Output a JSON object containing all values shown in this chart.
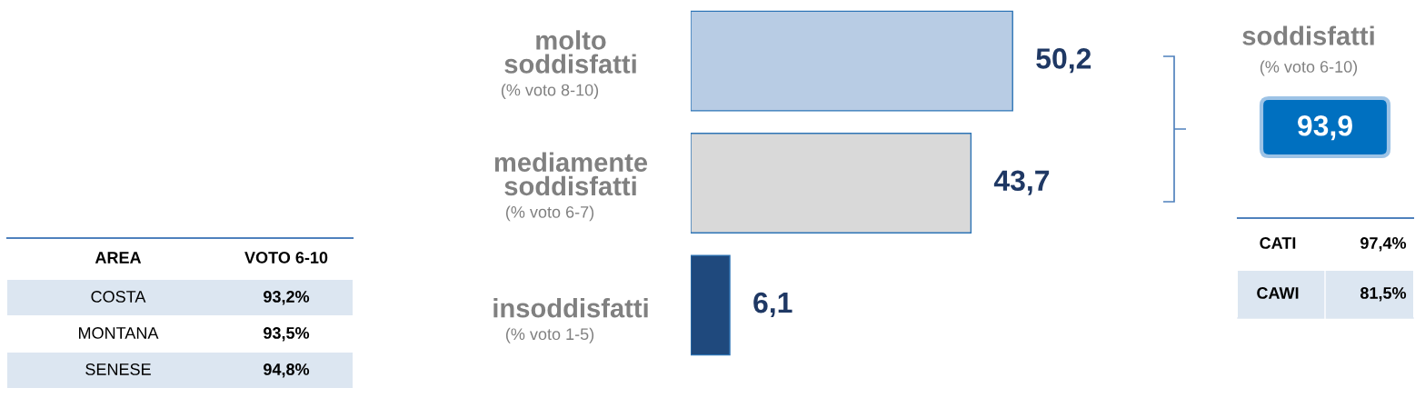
{
  "chart_data": [
    {
      "type": "bar",
      "orientation": "horizontal",
      "categories": [
        "molto\nsoddisfatti\n(% voto 8-10)",
        "mediamente\nsoddisfatti\n(% voto 6-7)",
        "insoddisfatti\n(% voto 1-5)"
      ],
      "values": [
        50.2,
        43.7,
        6.1
      ],
      "colors": [
        "#b8cce4",
        "#d9d9d9",
        "#1f497d"
      ],
      "value_labels": [
        "50,2",
        "43,7",
        "6,1"
      ]
    },
    {
      "type": "other",
      "title": "soddisfatti",
      "subtitle": "(% voto 6-10)",
      "annotations": [
        "93,9",
        "CATI",
        "97,4%",
        "CAWI",
        "81,5%"
      ]
    },
    {
      "type": "other",
      "annotations": [
        "AREA",
        "VOTO 6-10",
        "COSTA",
        "93,2%",
        "MONTANA",
        "93,5%",
        "SENESE",
        "94,8%"
      ]
    }
  ]
}
